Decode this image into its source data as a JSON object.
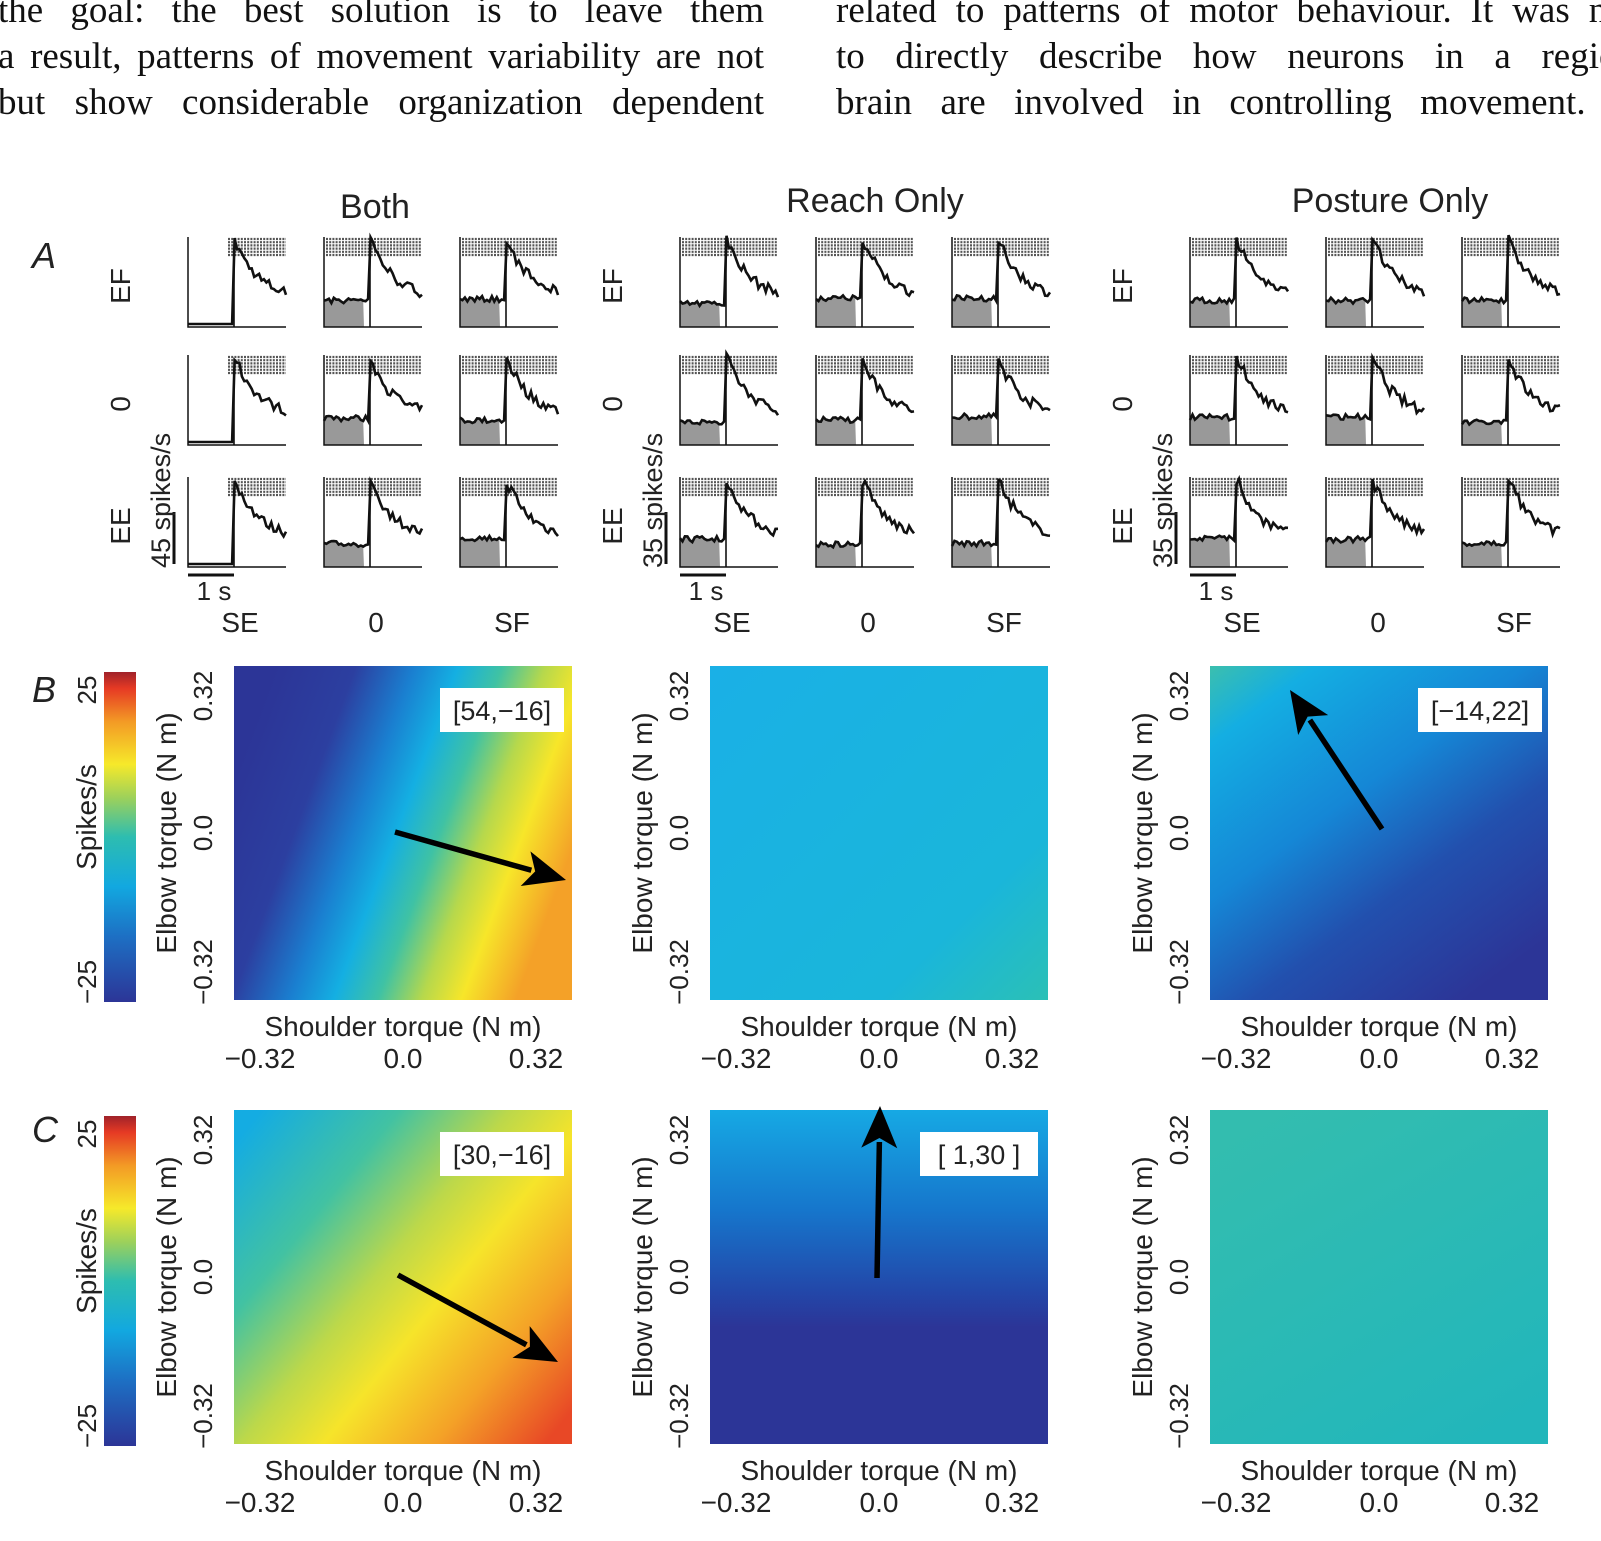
{
  "body_text": {
    "left_lines": [
      "the goal: the best solution is to leave them",
      "a result, patterns of movement variability are not",
      "but show considerable organization dependent"
    ],
    "right_lines": [
      "related to patterns of motor behaviour. It was not",
      "to directly describe how neurons in a region",
      "brain are involved in controlling movement. T"
    ]
  },
  "figure": {
    "panel_letters": [
      "A",
      "B",
      "C"
    ],
    "columns": [
      "Both",
      "Reach Only",
      "Posture Only"
    ],
    "row_labels": [
      "EF",
      "0",
      "EE"
    ],
    "col_labels": [
      "SE",
      "0",
      "SF"
    ],
    "time_scale": "1 s",
    "rate_scales": [
      "45 spikes/s",
      "35 spikes/s",
      "35 spikes/s"
    ],
    "colorbar": {
      "label": "Spikes/s",
      "max_label": "25",
      "min_label": "−25"
    },
    "heatmap": {
      "xlabel": "Shoulder torque (N m)",
      "ylabel": "Elbow torque (N m)",
      "ticks": [
        "−0.32",
        "0.0",
        "0.32"
      ]
    },
    "map_labels": {
      "B_both": "[54,−16]",
      "B_posture": "[−14,22]",
      "C_both": "[30,−16]",
      "C_reach": "[ 1,30 ]"
    },
    "colors": {
      "trace": "#111111",
      "fill": "#999999",
      "raster": "#555555"
    }
  }
}
